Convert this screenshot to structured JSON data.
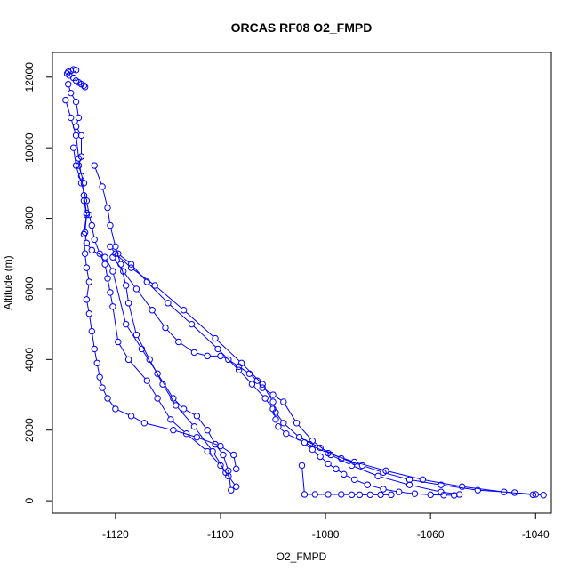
{
  "chart_data": {
    "type": "line",
    "title": "ORCAS RF08 O2_FMPD",
    "xlabel": "O2_FMPD",
    "ylabel": "Altitude (m)",
    "xlim": [
      -1132,
      -1037
    ],
    "ylim": [
      -350,
      12700
    ],
    "xticks": [
      -1120,
      -1100,
      -1080,
      -1060,
      -1040
    ],
    "yticks": [
      0,
      2000,
      4000,
      6000,
      8000,
      10000,
      12000
    ],
    "xtick_labels": [
      "-1120",
      "-1100",
      "-1080",
      "-1060",
      "-1040"
    ],
    "ytick_labels": [
      "0",
      "2000",
      "4000",
      "6000",
      "8000",
      "10000",
      "12000"
    ],
    "grid": false,
    "marker": "open-circle",
    "color": "#0000ff",
    "series": [
      {
        "x": [
          -1127.5,
          -1128.0,
          -1128.5,
          -1129.0,
          -1129.2,
          -1128.8,
          -1128.0,
          -1127.5,
          -1127.0,
          -1126.5,
          -1126.0,
          -1125.8
        ],
        "y": [
          12200,
          12220,
          12180,
          12150,
          12100,
          12050,
          11980,
          11900,
          11850,
          11800,
          11760,
          11720
        ]
      },
      {
        "x": [
          -1129.0,
          -1128.5,
          -1127.5,
          -1127.0,
          -1127.5,
          -1126.5,
          -1126.5,
          -1127.0,
          -1126.0,
          -1126.0,
          -1125.5,
          -1125.8,
          -1125.5,
          -1124.5,
          -1122.0,
          -1120.5,
          -1118.0,
          -1115.0,
          -1112.0,
          -1109.0,
          -1107.0,
          -1104.5,
          -1102.5,
          -1101.0,
          -1099.5,
          -1098.5,
          -1098.0
        ],
        "y": [
          11800,
          11550,
          11300,
          10850,
          10600,
          10350,
          9750,
          9500,
          9000,
          8500,
          8100,
          7600,
          7300,
          7100,
          6900,
          6500,
          5000,
          4300,
          3600,
          2900,
          2600,
          2400,
          2000,
          1600,
          1300,
          850,
          300
        ]
      },
      {
        "x": [
          -1129.5,
          -1128.5,
          -1127.5,
          -1127.0,
          -1126.5,
          -1126.0,
          -1125.5,
          -1126.0,
          -1125.8,
          -1125.5,
          -1125.0,
          -1125.5,
          -1125.0,
          -1124.5,
          -1124.0,
          -1123.5,
          -1123.0,
          -1122.5,
          -1121.5,
          -1120.0,
          -1117.0,
          -1114.5,
          -1109.0,
          -1104.5,
          -1100.0,
          -1097.5,
          -1097.0
        ],
        "y": [
          11350,
          10850,
          10350,
          9700,
          9200,
          8650,
          8150,
          7550,
          7000,
          6600,
          6200,
          5700,
          5300,
          4800,
          4300,
          3900,
          3500,
          3200,
          2900,
          2600,
          2400,
          2200,
          2000,
          1800,
          1550,
          1300,
          900
        ]
      },
      {
        "x": [
          -1128.0,
          -1127.5,
          -1126.5,
          -1125.5,
          -1125.0,
          -1124.5,
          -1124.0,
          -1123.0,
          -1122.0,
          -1121.5,
          -1121.0,
          -1120.5,
          -1119.5,
          -1117.5,
          -1114.0,
          -1112.0,
          -1109.5,
          -1106.5,
          -1102.5,
          -1100.0,
          -1098.5
        ],
        "y": [
          10000,
          9500,
          9000,
          8500,
          8100,
          7800,
          7400,
          7000,
          6700,
          6300,
          5900,
          5500,
          4500,
          4000,
          3400,
          2900,
          2300,
          1900,
          1400,
          1000,
          700
        ]
      },
      {
        "x": [
          -1124.0,
          -1122.5,
          -1121.5,
          -1121.0,
          -1120.0,
          -1119.0,
          -1118.0,
          -1117.5,
          -1116.0,
          -1113.5,
          -1111.0,
          -1108.5,
          -1105.0,
          -1101.5,
          -1099.0,
          -1097.0
        ],
        "y": [
          9500,
          8900,
          8300,
          7800,
          7200,
          6700,
          6100,
          5600,
          4700,
          4000,
          3300,
          2700,
          2100,
          1400,
          800,
          400
        ]
      },
      {
        "x": [
          -1121.0,
          -1120.0,
          -1117.0,
          -1112.5,
          -1107.0,
          -1101.0,
          -1096.0,
          -1092.0,
          -1090.0,
          -1089.5,
          -1088.0,
          -1085.0,
          -1081.0,
          -1077.0,
          -1073.0,
          -1069.0,
          -1064.0,
          -1058.0,
          -1051.0,
          -1044.0,
          -1040.0,
          -1038.5
        ],
        "y": [
          7200,
          7000,
          6600,
          6100,
          5400,
          4600,
          3900,
          3300,
          2800,
          2500,
          2200,
          1800,
          1500,
          1200,
          1000,
          800,
          600,
          450,
          300,
          230,
          180,
          160
        ]
      },
      {
        "x": [
          -1119.5,
          -1117.0,
          -1114.0,
          -1110.0,
          -1105.5,
          -1100.5,
          -1096.5,
          -1094.0,
          -1091.5,
          -1090.0,
          -1089.5,
          -1089.0,
          -1087.5,
          -1084.0,
          -1079.5,
          -1074.5,
          -1068.5,
          -1061.5,
          -1054.0,
          -1046.0,
          -1040.5
        ],
        "y": [
          7000,
          6700,
          6200,
          5600,
          5000,
          4300,
          3700,
          3300,
          2900,
          2600,
          2300,
          2100,
          1900,
          1650,
          1350,
          1100,
          850,
          600,
          400,
          250,
          170
        ]
      },
      {
        "x": [
          -1120.5,
          -1118.5,
          -1116.0,
          -1113.0,
          -1110.5,
          -1108.0,
          -1105.0,
          -1102.5,
          -1100.0,
          -1098.5,
          -1096.5,
          -1094.5,
          -1093.0,
          -1092.0,
          -1090.0,
          -1088.0,
          -1085.5,
          -1082.5,
          -1079.0,
          -1075.0,
          -1070.0,
          -1064.0,
          -1058.0,
          -1054.5
        ],
        "y": [
          6900,
          6500,
          6000,
          5400,
          4900,
          4500,
          4200,
          4100,
          4100,
          4000,
          3800,
          3600,
          3400,
          3200,
          3000,
          2800,
          2200,
          1700,
          1300,
          1000,
          700,
          450,
          250,
          180
        ]
      },
      {
        "x": [
          -1083.0,
          -1082.5,
          -1081.0,
          -1079.5,
          -1078.0,
          -1076.5,
          -1074.5,
          -1072.0,
          -1069.0,
          -1066.0,
          -1063.0,
          -1060.0,
          -1057.5,
          -1055.5
        ],
        "y": [
          1600,
          1450,
          1250,
          1050,
          900,
          750,
          600,
          450,
          330,
          250,
          200,
          170,
          160,
          155
        ]
      },
      {
        "x": [
          -1084.5,
          -1084.0,
          -1082.0,
          -1079.5,
          -1077.0,
          -1075.0,
          -1073.5,
          -1071.5,
          -1069.5,
          -1067.5
        ],
        "y": [
          1000,
          180,
          180,
          180,
          180,
          170,
          170,
          170,
          170,
          170
        ]
      }
    ]
  }
}
